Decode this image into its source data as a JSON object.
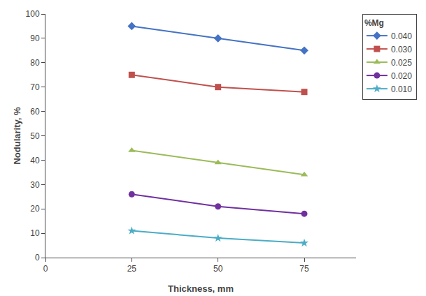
{
  "chart_data": {
    "type": "line",
    "xlabel": "Thickness, mm",
    "ylabel": "Nodularity, %",
    "legend_title": "%Mg",
    "legend": "upper right",
    "grid": false,
    "x": [
      25,
      50,
      75
    ],
    "series": [
      {
        "name": "0.040",
        "color": "#4472C4",
        "marker": "diamond",
        "values": [
          95,
          90,
          85
        ]
      },
      {
        "name": "0.030",
        "color": "#C0504D",
        "marker": "square",
        "values": [
          75,
          70,
          68
        ]
      },
      {
        "name": "0.025",
        "color": "#9BBB59",
        "marker": "triangle-up",
        "values": [
          44,
          39,
          34
        ]
      },
      {
        "name": "0.020",
        "color": "#7030A0",
        "marker": "circle",
        "values": [
          26,
          21,
          18
        ]
      },
      {
        "name": "0.010",
        "color": "#4BACC6",
        "marker": "star",
        "values": [
          11,
          8,
          6
        ]
      }
    ],
    "xlim": [
      0,
      90
    ],
    "ylim": [
      0,
      100
    ],
    "xticks": [
      0,
      25,
      50,
      75
    ],
    "yticks": [
      0,
      10,
      20,
      30,
      40,
      50,
      60,
      70,
      80,
      90,
      100
    ]
  }
}
